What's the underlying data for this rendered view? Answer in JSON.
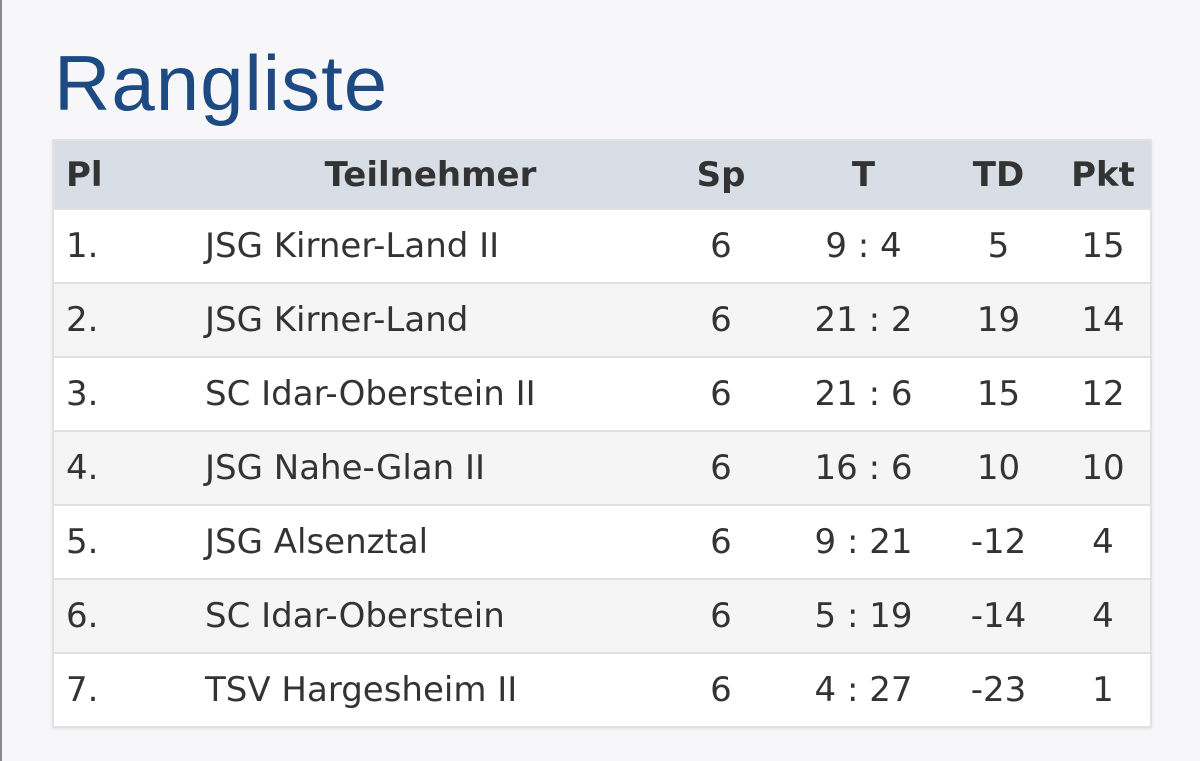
{
  "header": {
    "title": "Rangliste"
  },
  "table": {
    "columns": [
      "Pl",
      "Teilnehmer",
      "Sp",
      "T",
      "TD",
      "Pkt"
    ],
    "rows": [
      [
        "1.",
        "JSG Kirner-Land II",
        6,
        "9 : 4",
        5,
        15
      ],
      [
        "2.",
        "JSG Kirner-Land",
        6,
        "21 : 2",
        19,
        14
      ],
      [
        "3.",
        "SC Idar-Oberstein II",
        6,
        "21 : 6",
        15,
        12
      ],
      [
        "4.",
        "JSG Nahe-Glan II",
        6,
        "16 : 6",
        10,
        10
      ],
      [
        "5.",
        "JSG Alsenztal",
        6,
        "9 : 21",
        -12,
        4
      ],
      [
        "6.",
        "SC Idar-Oberstein",
        6,
        "5 : 19",
        -14,
        4
      ],
      [
        "7.",
        "TSV Hargesheim II",
        6,
        "4 : 27",
        -23,
        1
      ]
    ]
  }
}
